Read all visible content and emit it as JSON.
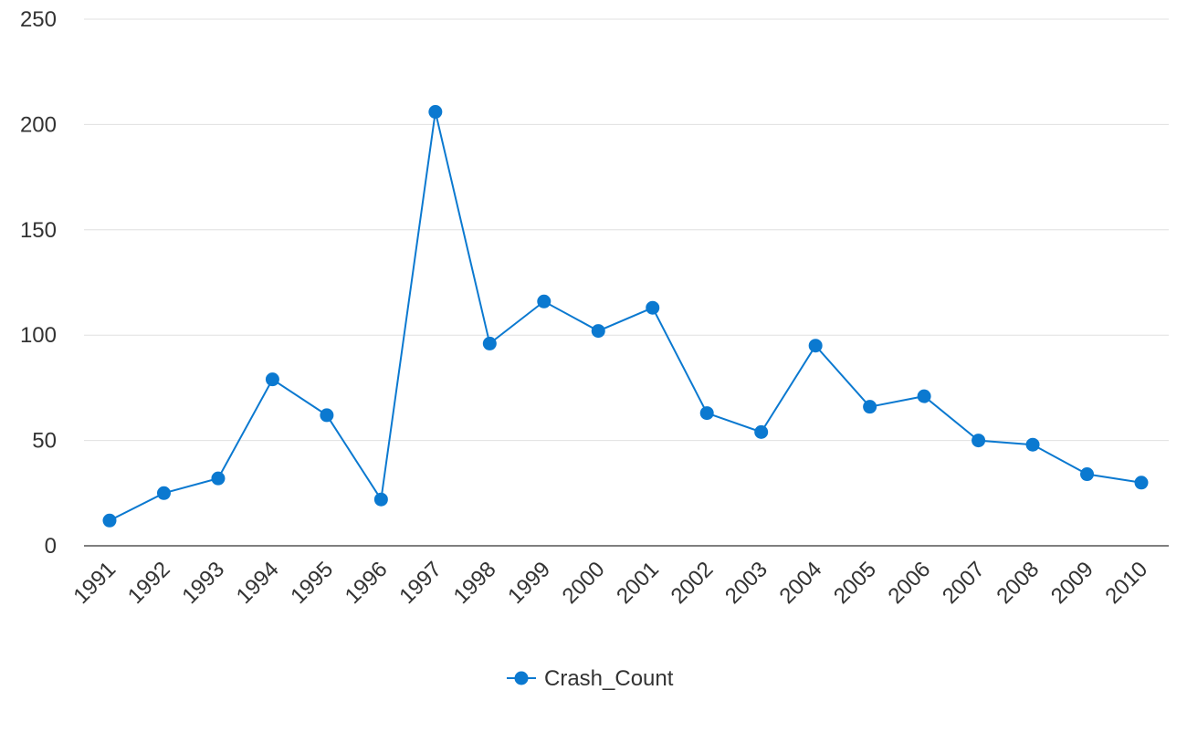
{
  "chart_data": {
    "type": "line",
    "title": "",
    "xlabel": "",
    "ylabel": "",
    "categories": [
      "1991",
      "1992",
      "1993",
      "1994",
      "1995",
      "1996",
      "1997",
      "1998",
      "1999",
      "2000",
      "2001",
      "2002",
      "2003",
      "2004",
      "2005",
      "2006",
      "2007",
      "2008",
      "2009",
      "2010"
    ],
    "series": [
      {
        "name": "Crash_Count",
        "values": [
          12,
          25,
          32,
          79,
          62,
          22,
          206,
          96,
          116,
          102,
          113,
          63,
          54,
          95,
          66,
          71,
          50,
          48,
          34,
          30
        ]
      }
    ],
    "ylim": [
      0,
      250
    ],
    "yticks": [
      "0",
      "50",
      "100",
      "150",
      "200",
      "250"
    ],
    "grid": true,
    "legend_position": "bottom-center",
    "colors": {
      "series": "#0b79d0",
      "grid": "#e0e0e0",
      "axis": "#333333",
      "text": "#333333"
    }
  }
}
